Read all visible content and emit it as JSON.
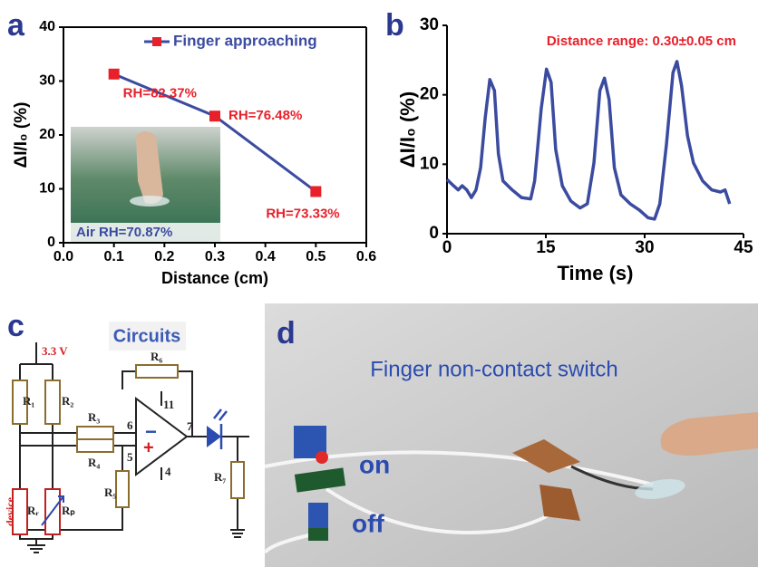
{
  "chart_data": [
    {
      "type": "line",
      "panel_label": "a",
      "frame": true,
      "markers": true,
      "marker_color": "#e8202a",
      "xlabel": "Distance (cm)",
      "ylabel": "ΔI/I₀ (%)",
      "x": [
        0.1,
        0.3,
        0.5
      ],
      "series": [
        {
          "name": "Finger approaching",
          "color": "#3b4ba0",
          "values": [
            31.3,
            23.5,
            9.5
          ]
        }
      ],
      "point_labels": [
        "RH=82.37%",
        "RH=76.48%",
        "RH=73.33%"
      ],
      "inset_label": "Air RH=70.87%",
      "legend": "upper right",
      "xlim": [
        0,
        0.6
      ],
      "xticks": [
        {
          "value": 0,
          "label": "0.0"
        },
        0.1,
        0.2,
        0.3,
        0.4,
        0.5,
        0.6
      ],
      "ylim": [
        0,
        40
      ],
      "yticks": [
        0,
        10,
        20,
        30,
        40
      ]
    },
    {
      "type": "line",
      "panel_label": "b",
      "frame": false,
      "markers": false,
      "annotation": "Distance range: 0.30±0.05 cm",
      "xlabel": "Time (s)",
      "ylabel": "ΔI/I₀ (%)",
      "color": "#3b4ba0",
      "x": [
        0,
        1.0,
        1.7,
        2.3,
        3.0,
        3.7,
        4.4,
        5.1,
        5.8,
        6.5,
        7.2,
        7.8,
        8.5,
        9.9,
        11.3,
        12.7,
        13.3,
        14.3,
        15.1,
        15.8,
        16.5,
        17.5,
        18.8,
        20.2,
        21.3,
        22.3,
        23.2,
        23.9,
        24.6,
        25.4,
        26.4,
        27.8,
        29.2,
        30.5,
        31.5,
        32.3,
        33.3,
        34.3,
        34.9,
        35.6,
        36.5,
        37.4,
        38.8,
        40.2,
        41.5,
        42.2,
        42.9
      ],
      "values": [
        7.8,
        6.9,
        6.3,
        6.9,
        6.3,
        5.2,
        6.3,
        9.5,
        16.7,
        22.2,
        20.6,
        11.5,
        7.6,
        6.3,
        5.2,
        5.0,
        7.6,
        18.0,
        23.7,
        21.8,
        12.1,
        6.9,
        4.7,
        3.7,
        4.3,
        10.2,
        20.6,
        22.4,
        19.3,
        9.5,
        5.6,
        4.3,
        3.4,
        2.3,
        2.1,
        4.3,
        12.8,
        23.2,
        24.8,
        21.3,
        14.1,
        10.2,
        7.6,
        6.3,
        6.0,
        6.3,
        4.3
      ],
      "xlim": [
        0,
        45
      ],
      "xticks": [
        0,
        15,
        30,
        45
      ],
      "ylim": [
        0,
        30
      ],
      "yticks": [
        0,
        10,
        20,
        30
      ]
    }
  ],
  "circuit": {
    "panel_label": "c",
    "title": "Circuits",
    "supply": "3.3 V",
    "device": "device",
    "resistors": [
      "R₁",
      "R₂",
      "R₃",
      "R₄",
      "R₅",
      "R₆",
      "R₇",
      "Rᵣ",
      "Rₚ"
    ],
    "pins": [
      "6",
      "5",
      "11",
      "4",
      "7"
    ],
    "minus": "−",
    "plus": "+"
  },
  "photo": {
    "panel_label": "d",
    "title": "Finger non-contact switch",
    "on": "on",
    "off": "off"
  }
}
